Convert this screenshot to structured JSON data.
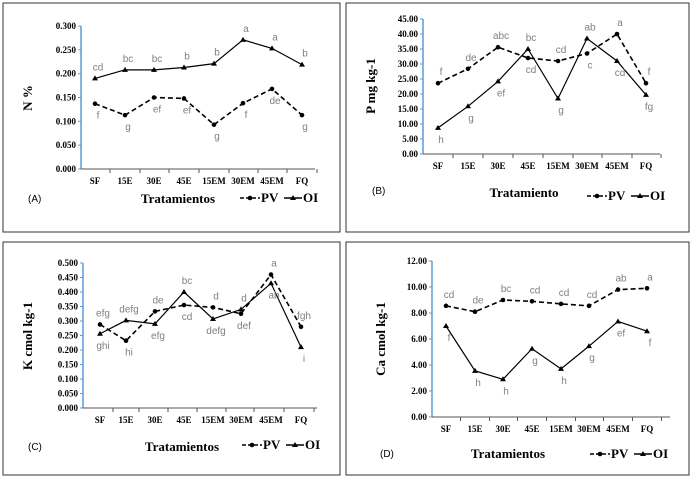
{
  "chart_data": [
    {
      "type": "line",
      "panel": "(A)",
      "categories": [
        "SF",
        "15E",
        "30E",
        "45E",
        "15EM",
        "30EM",
        "45EM",
        "FQ"
      ],
      "xlabel": "Tratamientos",
      "ylabel": "N %",
      "ylim": [
        0,
        0.3
      ],
      "yticks": [
        "0.000",
        "0.050",
        "0.100",
        "0.150",
        "0.200",
        "0.250",
        "0.300"
      ],
      "grid": false,
      "legend": "bottom-right",
      "series": [
        {
          "name": "PV",
          "style": "dashed",
          "marker": "circle",
          "values": [
            0.137,
            0.113,
            0.15,
            0.148,
            0.093,
            0.138,
            0.168,
            0.113
          ],
          "letters": [
            "f",
            "g",
            "ef",
            "ef",
            "g",
            "f",
            "de",
            "g"
          ]
        },
        {
          "name": "OI",
          "style": "solid",
          "marker": "triangle",
          "values": [
            0.19,
            0.208,
            0.208,
            0.213,
            0.221,
            0.271,
            0.253,
            0.219
          ],
          "letters": [
            "cd",
            "bc",
            "bc",
            "b",
            "b",
            "a",
            "a",
            "b"
          ]
        }
      ]
    },
    {
      "type": "line",
      "panel": "(B)",
      "categories": [
        "SF",
        "15E",
        "30E",
        "45E",
        "15EM",
        "30EM",
        "45EM",
        "FQ"
      ],
      "xlabel": "Tratamiento",
      "ylabel": "P mg kg-1",
      "ylim": [
        0,
        45
      ],
      "yticks": [
        "0.00",
        "5.00",
        "10.00",
        "15.00",
        "20.00",
        "25.00",
        "30.00",
        "35.00",
        "40.00",
        "45.00"
      ],
      "grid": false,
      "legend": "bottom-right",
      "series": [
        {
          "name": "PV",
          "style": "dashed",
          "marker": "circle",
          "values": [
            23.6,
            28.4,
            35.6,
            32.0,
            31.0,
            33.5,
            40.0,
            23.6
          ],
          "letters": [
            "f",
            "de",
            "abc",
            "cd",
            "cd",
            "c",
            "a",
            "f"
          ]
        },
        {
          "name": "OI",
          "style": "solid",
          "marker": "triangle",
          "values": [
            8.7,
            15.9,
            24.2,
            35.0,
            18.5,
            38.5,
            31.0,
            19.7
          ],
          "letters": [
            "h",
            "g",
            "ef",
            "bc",
            "g",
            "ab",
            "cd",
            "fg"
          ]
        }
      ]
    },
    {
      "type": "line",
      "panel": "(C)",
      "categories": [
        "SF",
        "15E",
        "30E",
        "45E",
        "15EM",
        "30EM",
        "45EM",
        "FQ"
      ],
      "xlabel": "Tratamientos",
      "ylabel": "K cmol kg-1",
      "ylim": [
        0,
        0.5
      ],
      "yticks": [
        "0.000",
        "0.050",
        "0.100",
        "0.150",
        "0.200",
        "0.250",
        "0.300",
        "0.350",
        "0.400",
        "0.450",
        "0.500"
      ],
      "grid": false,
      "legend": "bottom-right",
      "series": [
        {
          "name": "PV",
          "style": "dashed",
          "marker": "circle",
          "values": [
            0.288,
            0.232,
            0.333,
            0.355,
            0.347,
            0.325,
            0.46,
            0.28
          ],
          "letters": [
            "efg",
            "hi",
            "de",
            "cd",
            "d",
            "def",
            "a",
            "fgh"
          ]
        },
        {
          "name": "OI",
          "style": "solid",
          "marker": "triangle",
          "values": [
            0.256,
            0.302,
            0.29,
            0.4,
            0.307,
            0.34,
            0.43,
            0.21
          ],
          "letters": [
            "ghi",
            "defg",
            "efg",
            "bc",
            "defg",
            "d",
            "ab",
            "i"
          ]
        }
      ]
    },
    {
      "type": "line",
      "panel": "(D)",
      "categories": [
        "SF",
        "15E",
        "30E",
        "45E",
        "15EM",
        "30EM",
        "45EM",
        "FQ"
      ],
      "xlabel": "Tratamientos",
      "ylabel": "Ca cmol kg-1",
      "ylim": [
        0,
        12
      ],
      "yticks": [
        "0.00",
        "2.00",
        "4.00",
        "6.00",
        "8.00",
        "10.00",
        "12.00"
      ],
      "grid": false,
      "legend": "bottom-right",
      "series": [
        {
          "name": "PV",
          "style": "dashed",
          "marker": "circle",
          "values": [
            8.55,
            8.1,
            9.0,
            8.9,
            8.7,
            8.55,
            9.8,
            9.9
          ],
          "letters": [
            "cd",
            "de",
            "bc",
            "cd",
            "cd",
            "cd",
            "ab",
            "a"
          ]
        },
        {
          "name": "OI",
          "style": "solid",
          "marker": "triangle",
          "values": [
            7.0,
            3.55,
            2.9,
            5.25,
            3.7,
            5.45,
            7.35,
            6.6
          ],
          "letters": [
            "f",
            "h",
            "h",
            "g",
            "h",
            "g",
            "ef",
            "f"
          ]
        }
      ]
    }
  ],
  "colors": {
    "axis": "#5b9bd5",
    "line": "#000000",
    "letters": "#808080"
  }
}
